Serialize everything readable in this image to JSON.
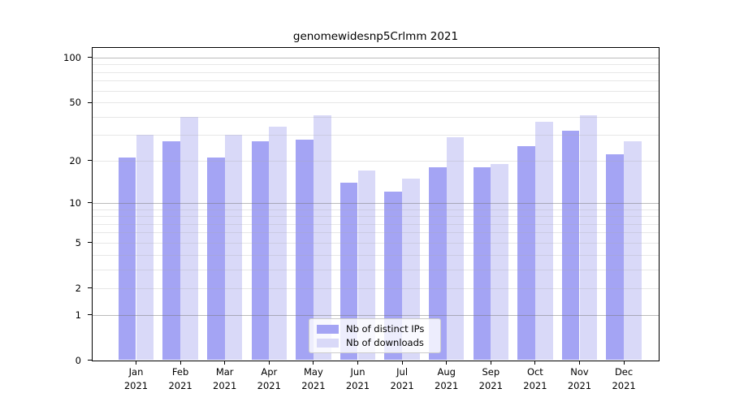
{
  "window": {
    "background": "#ffffff"
  },
  "chart_data": {
    "type": "bar",
    "title": "genomewidesnp5Crlmm 2021",
    "year_label": "2021",
    "categories": [
      "Jan",
      "Feb",
      "Mar",
      "Apr",
      "May",
      "Jun",
      "Jul",
      "Aug",
      "Sep",
      "Oct",
      "Nov",
      "Dec"
    ],
    "series": [
      {
        "name": "Nb of distinct IPs",
        "color": "#a4a4f4",
        "values": [
          21,
          27,
          21,
          27,
          28,
          14,
          12,
          18,
          18,
          25,
          32,
          22
        ]
      },
      {
        "name": "Nb of downloads",
        "color": "#d9d9f8",
        "values": [
          30,
          40,
          30,
          34,
          41,
          17,
          15,
          29,
          19,
          37,
          41,
          27
        ]
      }
    ],
    "yscale": "log10(1+v)",
    "ylim": [
      0,
      116
    ],
    "y_ticks": [
      0,
      1,
      2,
      5,
      10,
      20,
      50,
      100
    ],
    "grid_major": [
      1,
      10,
      100
    ],
    "grid_minor": [
      2,
      3,
      4,
      5,
      6,
      7,
      8,
      9,
      20,
      30,
      40,
      50,
      60,
      70,
      80,
      90
    ],
    "grid": "on",
    "legend_position": "bottom-center",
    "axis_color": "#000000",
    "gridline_major_color": "#8c8c8c",
    "gridline_minor_color": "#e8e8e8"
  }
}
